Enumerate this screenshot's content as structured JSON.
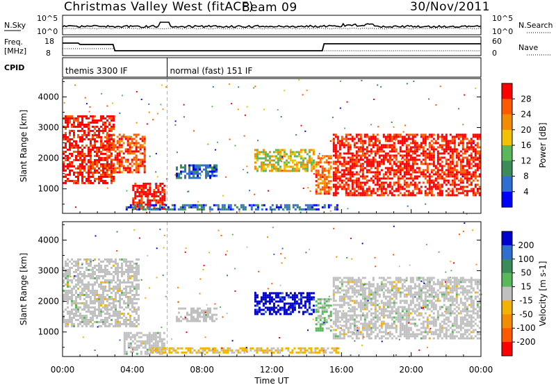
{
  "header": {
    "station": "Christmas Valley West (fitACF)",
    "beam": "Beam 09",
    "date": "30/Nov/2011"
  },
  "summary_panels": {
    "nsky_label": "N.Sky",
    "nsearch_label": "N.Search",
    "freq_label_top": "Freq.",
    "freq_label_unit": "[MHz]",
    "nave_label": "Nave",
    "cpid_label": "CPID",
    "nsky_ticks": [
      "10^5",
      "10^0"
    ],
    "nsearch_ticks": [
      "10^5",
      "10^0"
    ],
    "freq_ticks": [
      "18",
      "8"
    ],
    "nave_ticks": [
      "60",
      "0"
    ],
    "cpid_segments": [
      {
        "label": "themis 3300 IF",
        "start_hour": 0,
        "end_hour": 6
      },
      {
        "label": "normal (fast) 151 IF",
        "start_hour": 6,
        "end_hour": 24
      }
    ]
  },
  "colors": {
    "power_scale": [
      "#0000ff",
      "#2f6fd0",
      "#3c8c5a",
      "#58b85a",
      "#f2c200",
      "#f28c00",
      "#ff5a00",
      "#ff0000"
    ],
    "velocity_scale": [
      "#0000cc",
      "#2f6fd0",
      "#3c8c5a",
      "#58b85a",
      "#c0c0c0",
      "#f2b200",
      "#f28c00",
      "#ff5a00",
      "#ff0000"
    ]
  },
  "chart_data": [
    {
      "type": "heatmap",
      "name": "power",
      "xlabel": "",
      "ylabel": "Slant Range [km]",
      "xlim": [
        0,
        24
      ],
      "ylim": [
        200,
        4600
      ],
      "yticks": [
        1000,
        2000,
        3000,
        4000
      ],
      "colorbar_label": "Power [dB]",
      "colorbar_ticks": [
        "28",
        "24",
        "20",
        "16",
        "12",
        "8",
        "4"
      ],
      "colorbar_range": [
        0,
        32
      ],
      "regions": [
        {
          "t0": 0.0,
          "t1": 3.0,
          "r0": 1100,
          "r1": 3400,
          "value": 30
        },
        {
          "t0": 2.5,
          "t1": 4.8,
          "r0": 1500,
          "r1": 2800,
          "value": 27
        },
        {
          "t0": 4.0,
          "t1": 6.0,
          "r0": 250,
          "r1": 1200,
          "value": 30
        },
        {
          "t0": 3.5,
          "t1": 16.0,
          "r0": 250,
          "r1": 500,
          "value": 6
        },
        {
          "t0": 6.5,
          "t1": 9.0,
          "r0": 1300,
          "r1": 1800,
          "value": 6
        },
        {
          "t0": 11.0,
          "t1": 14.5,
          "r0": 1500,
          "r1": 2300,
          "value": 18
        },
        {
          "t0": 14.5,
          "t1": 15.5,
          "r0": 800,
          "r1": 2100,
          "value": 24
        },
        {
          "t0": 15.5,
          "t1": 24.0,
          "r0": 700,
          "r1": 2800,
          "value": 30
        }
      ]
    },
    {
      "type": "heatmap",
      "name": "velocity",
      "xlabel": "Time UT",
      "ylabel": "Slant Range [km]",
      "xlim": [
        0,
        24
      ],
      "ylim": [
        200,
        4600
      ],
      "yticks": [
        1000,
        2000,
        3000,
        4000
      ],
      "xticks": [
        "00:00",
        "04:00",
        "08:00",
        "12:00",
        "16:00",
        "20:00",
        "00:00"
      ],
      "colorbar_label": "Velocity [m s-1]",
      "colorbar_ticks": [
        "200",
        "100",
        "50",
        "15",
        "-15",
        "-50",
        "-100",
        "-200"
      ],
      "colorbar_range": [
        -250,
        250
      ],
      "regions": [
        {
          "t0": 0.0,
          "t1": 4.5,
          "r0": 1100,
          "r1": 3400,
          "value": 0
        },
        {
          "t0": 3.5,
          "t1": 6.0,
          "r0": 250,
          "r1": 1000,
          "value": 0
        },
        {
          "t0": 5.0,
          "t1": 16.0,
          "r0": 250,
          "r1": 500,
          "value": -40
        },
        {
          "t0": 6.5,
          "t1": 9.0,
          "r0": 1300,
          "r1": 1800,
          "value": 0
        },
        {
          "t0": 11.0,
          "t1": 14.5,
          "r0": 1500,
          "r1": 2300,
          "value": 220
        },
        {
          "t0": 14.5,
          "t1": 15.5,
          "r0": 1000,
          "r1": 2100,
          "value": 40
        },
        {
          "t0": 15.5,
          "t1": 24.0,
          "r0": 700,
          "r1": 2800,
          "value": 0
        }
      ]
    }
  ]
}
